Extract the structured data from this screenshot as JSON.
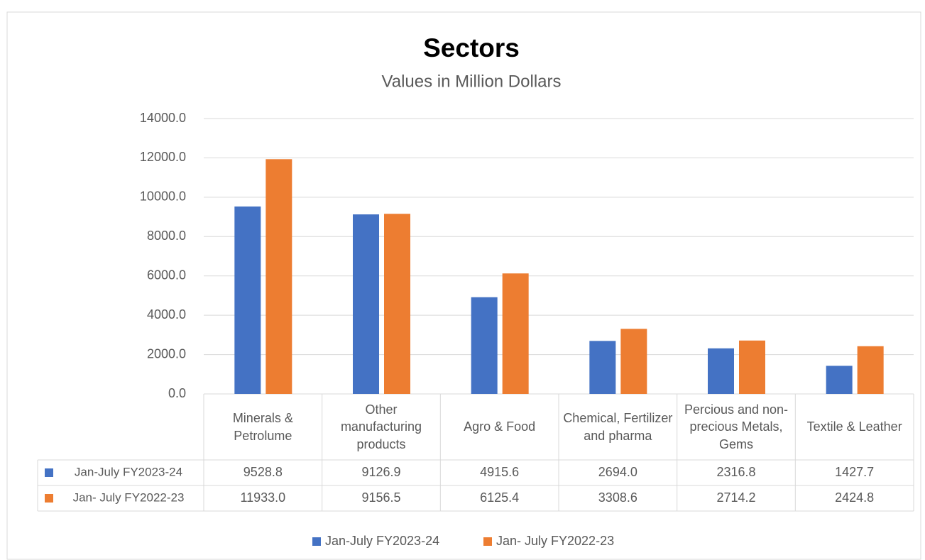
{
  "chart_data": {
    "type": "bar",
    "title": "Sectors",
    "subtitle": "Values in Million Dollars",
    "categories": [
      "Minerals & Petrolume",
      "Other manufacturing products",
      "Agro & Food",
      "Chemical, Fertilizer and pharma",
      "Percious and non-precious Metals, Gems",
      "Textile & Leather"
    ],
    "series": [
      {
        "name": "Jan-July FY2023-24",
        "color": "#4472c4",
        "values": [
          9528.8,
          9126.9,
          4915.6,
          2694.0,
          2316.8,
          1427.7
        ],
        "value_labels": [
          "9528.8",
          "9126.9",
          "4915.6",
          "2694.0",
          "2316.8",
          "1427.7"
        ]
      },
      {
        "name": "Jan- July FY2022-23",
        "color": "#ed7d31",
        "values": [
          11933.0,
          9156.5,
          6125.4,
          3308.6,
          2714.2,
          2424.8
        ],
        "value_labels": [
          "11933.0",
          "9156.5",
          "6125.4",
          "3308.6",
          "2714.2",
          "2424.8"
        ]
      }
    ],
    "ylim": [
      0,
      14000
    ],
    "yticks": [
      {
        "value": 0,
        "label": "0.0"
      },
      {
        "value": 2000,
        "label": "2000.0"
      },
      {
        "value": 4000,
        "label": "4000.0"
      },
      {
        "value": 6000,
        "label": "6000.0"
      },
      {
        "value": 8000,
        "label": "8000.0"
      },
      {
        "value": 10000,
        "label": "10000.0"
      },
      {
        "value": 12000,
        "label": "12000.0"
      },
      {
        "value": 14000,
        "label": "14000.0"
      }
    ],
    "grid": true,
    "legend": "bottom"
  }
}
